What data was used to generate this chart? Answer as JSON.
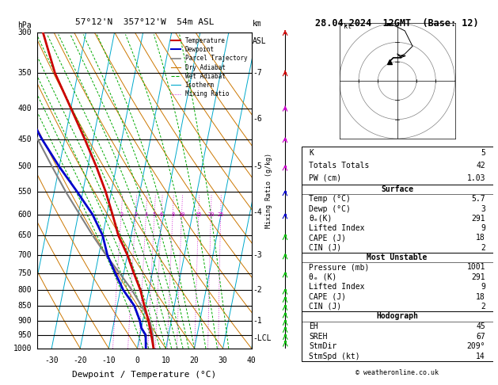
{
  "title_left": "57°12'N  357°12'W  54m ASL",
  "title_right": "28.04.2024  12GMT  (Base: 12)",
  "xlabel": "Dewpoint / Temperature (°C)",
  "ylabel_left": "hPa",
  "mixing_ratio_label": "Mixing Ratio (g/kg)",
  "pressure_levels": [
    300,
    350,
    400,
    450,
    500,
    550,
    600,
    650,
    700,
    750,
    800,
    850,
    900,
    950,
    1000
  ],
  "p_min": 300,
  "p_max": 1000,
  "temp_min": -35,
  "temp_max": 40,
  "skew_factor": 22.0,
  "temp_profile": {
    "pressure": [
      1000,
      950,
      925,
      900,
      850,
      800,
      750,
      700,
      650,
      600,
      550,
      500,
      450,
      400,
      350,
      300
    ],
    "temperature": [
      5.7,
      4.0,
      3.0,
      2.0,
      -0.5,
      -3.0,
      -6.5,
      -10.0,
      -14.5,
      -18.0,
      -22.0,
      -27.0,
      -33.0,
      -40.0,
      -48.0,
      -55.0
    ]
  },
  "dewp_profile": {
    "pressure": [
      1000,
      950,
      925,
      900,
      850,
      800,
      750,
      700,
      650,
      600,
      550,
      500,
      450,
      400,
      350,
      300
    ],
    "temperature": [
      3.0,
      2.0,
      0.0,
      -1.0,
      -4.0,
      -9.0,
      -13.0,
      -17.0,
      -20.0,
      -25.0,
      -32.0,
      -40.0,
      -48.0,
      -56.0,
      -64.0,
      -70.0
    ]
  },
  "parcel_profile": {
    "pressure": [
      1000,
      950,
      925,
      900,
      850,
      800,
      750,
      700,
      650,
      600,
      550,
      500,
      450,
      400,
      350,
      300
    ],
    "temperature": [
      5.7,
      4.5,
      3.5,
      2.5,
      -1.5,
      -6.0,
      -11.5,
      -17.5,
      -23.5,
      -29.5,
      -36.0,
      -42.5,
      -49.5,
      -56.5,
      -64.0,
      -71.5
    ]
  },
  "isotherms": [
    -40,
    -30,
    -20,
    -10,
    0,
    10,
    20,
    30,
    40
  ],
  "dry_adiabats_theta": [
    -20,
    -10,
    0,
    10,
    20,
    30,
    40,
    50,
    60,
    70,
    80,
    90,
    100,
    110
  ],
  "wet_adiabats_theta": [
    2,
    4,
    6,
    8,
    10,
    12,
    14,
    16,
    18,
    20,
    24,
    28,
    32
  ],
  "mixing_ratios": [
    2,
    3,
    4,
    5,
    6,
    8,
    10,
    15,
    20,
    25
  ],
  "km_labels": {
    "7": 350,
    "6": 416,
    "5": 500,
    "4": 595,
    "3": 700,
    "2": 800,
    "1": 900,
    "LCL": 962
  },
  "surface_stats": {
    "K": 5,
    "Totals_Totals": 42,
    "PW_cm": 1.03,
    "Temp_C": 5.7,
    "Dewp_C": 3,
    "theta_e_K": 291,
    "Lifted_Index": 9,
    "CAPE_J": 18,
    "CIN_J": 2
  },
  "unstable_stats": {
    "Pressure_mb": 1001,
    "theta_e_K": 291,
    "Lifted_Index": 9,
    "CAPE_J": 18,
    "CIN_J": 2
  },
  "hodograph_stats": {
    "EH": 45,
    "SREH": 67,
    "StmDir_deg": 209,
    "StmSpd_kt": 14
  },
  "wind_barbs": [
    {
      "p": 975,
      "u": -2,
      "v": 10,
      "color": "#00bb00"
    },
    {
      "p": 950,
      "u": -2,
      "v": 10,
      "color": "#00bb00"
    },
    {
      "p": 925,
      "u": -1,
      "v": 12,
      "color": "#00bb00"
    },
    {
      "p": 900,
      "u": -1,
      "v": 12,
      "color": "#00bb00"
    },
    {
      "p": 875,
      "u": 0,
      "v": 12,
      "color": "#00bb00"
    },
    {
      "p": 850,
      "u": 1,
      "v": 12,
      "color": "#00bb00"
    },
    {
      "p": 825,
      "u": 1,
      "v": 13,
      "color": "#00bb00"
    },
    {
      "p": 800,
      "u": 2,
      "v": 13,
      "color": "#00bb00"
    },
    {
      "p": 750,
      "u": 1,
      "v": 12,
      "color": "#00bb00"
    },
    {
      "p": 700,
      "u": 0,
      "v": 14,
      "color": "#00bb00"
    },
    {
      "p": 650,
      "u": 1,
      "v": 13,
      "color": "#00bb00"
    },
    {
      "p": 600,
      "u": 2,
      "v": 14,
      "color": "#0000cc"
    },
    {
      "p": 550,
      "u": 3,
      "v": 16,
      "color": "#0000cc"
    },
    {
      "p": 500,
      "u": 4,
      "v": 18,
      "color": "#cc00cc"
    },
    {
      "p": 450,
      "u": 3,
      "v": 22,
      "color": "#cc00cc"
    },
    {
      "p": 400,
      "u": 2,
      "v": 26,
      "color": "#cc00cc"
    },
    {
      "p": 350,
      "u": 0,
      "v": 28,
      "color": "#cc0000"
    },
    {
      "p": 300,
      "u": -2,
      "v": 30,
      "color": "#cc0000"
    }
  ],
  "bg_color": "#ffffff",
  "temp_color": "#cc0000",
  "dewp_color": "#0000cc",
  "parcel_color": "#808080",
  "dry_adiabat_color": "#cc7700",
  "wet_adiabat_color": "#00aa00",
  "isotherm_color": "#00aacc",
  "mixing_ratio_color": "#cc00cc",
  "font_family": "monospace"
}
